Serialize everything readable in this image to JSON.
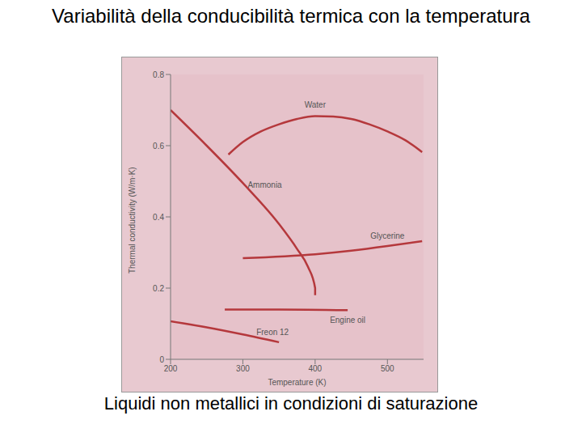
{
  "chart_data": {
    "type": "line",
    "title": "Variabilità della conducibilità termica con la temperatura",
    "subtitle": "Liquidi non metallici in condizioni di saturazione",
    "x_label": "Temperature (K)",
    "y_label": "Thermal conductivity (W/m·K)",
    "xlim": [
      200,
      550
    ],
    "xticks": [
      200,
      300,
      400,
      500
    ],
    "ylim": [
      0,
      0.8
    ],
    "yticks": [
      0,
      0.2,
      0.4,
      0.6,
      0.8
    ],
    "grid": false,
    "series": [
      {
        "name": "Water",
        "color": "#b5383c",
        "x": [
          280,
          300,
          325,
          350,
          375,
          400,
          425,
          450,
          475,
          500,
          525,
          548
        ],
        "values": [
          0.575,
          0.61,
          0.64,
          0.66,
          0.675,
          0.683,
          0.682,
          0.675,
          0.66,
          0.64,
          0.615,
          0.582
        ]
      },
      {
        "name": "Ammonia",
        "color": "#b5383c",
        "x": [
          200,
          250,
          300,
          350,
          375,
          390,
          400,
          400
        ],
        "values": [
          0.7,
          0.6,
          0.495,
          0.38,
          0.31,
          0.26,
          0.2,
          0.18
        ]
      },
      {
        "name": "Glycerine",
        "color": "#b5383c",
        "x": [
          300,
          400,
          450,
          500,
          548
        ],
        "values": [
          0.284,
          0.295,
          0.305,
          0.318,
          0.332
        ]
      },
      {
        "name": "Engine oil",
        "color": "#b5383c",
        "x": [
          275,
          350,
          445
        ],
        "values": [
          0.14,
          0.14,
          0.138
        ]
      },
      {
        "name": "Freon 12",
        "color": "#b5383c",
        "x": [
          200,
          250,
          300,
          350
        ],
        "values": [
          0.107,
          0.09,
          0.07,
          0.048
        ]
      }
    ]
  }
}
